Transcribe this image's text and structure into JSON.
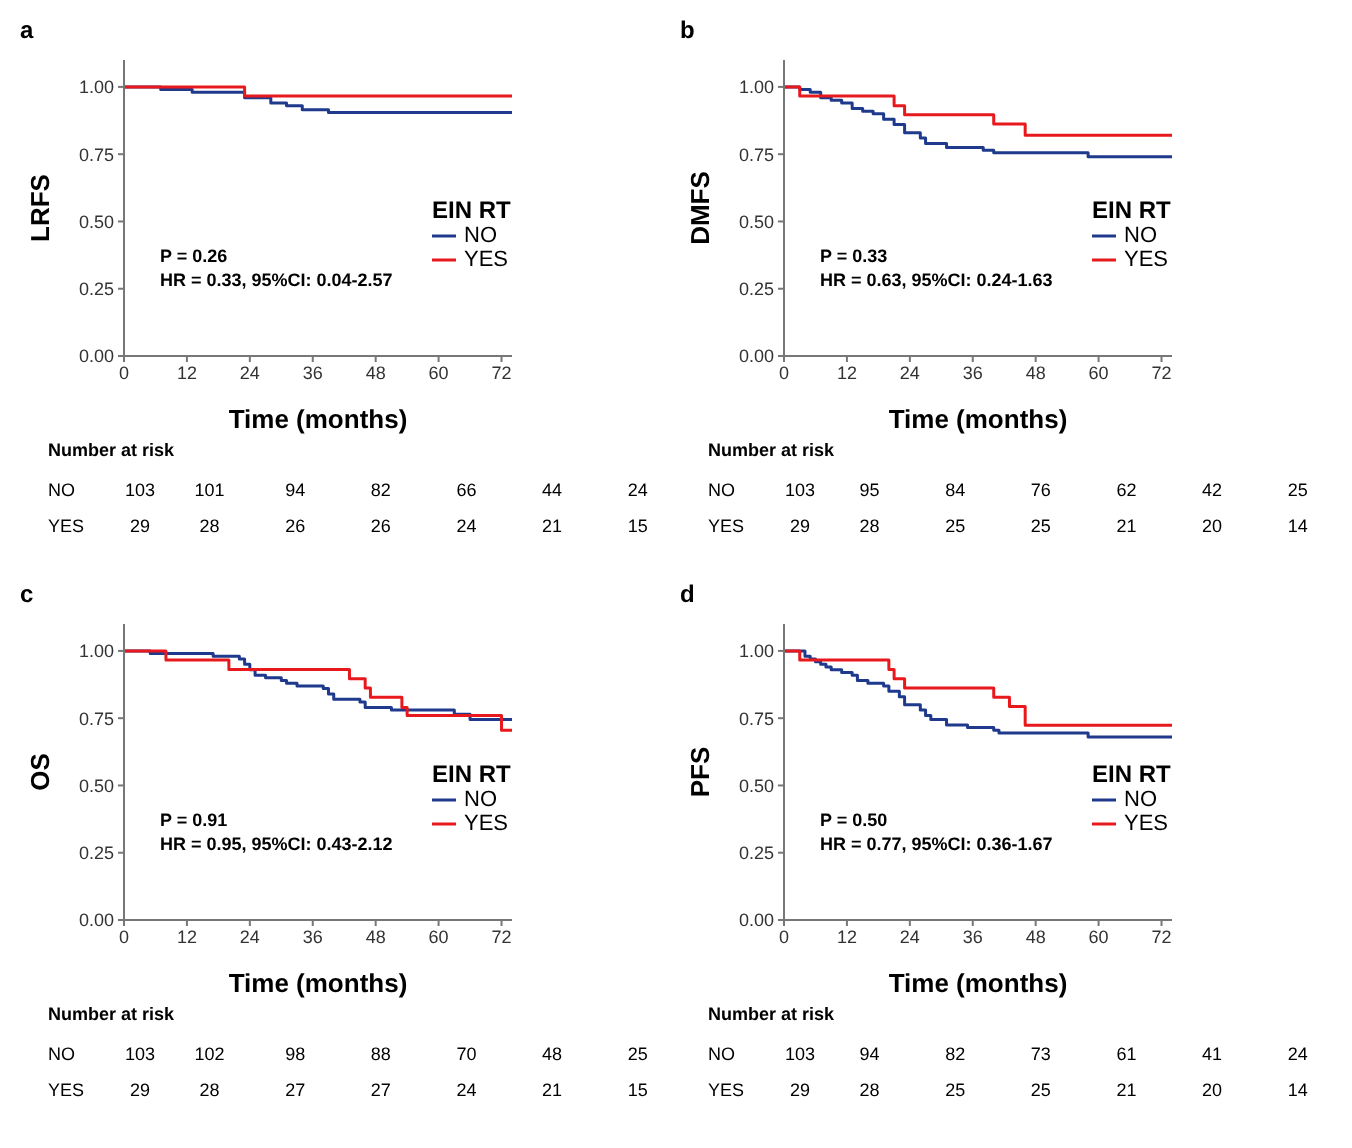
{
  "chart_data": [
    {
      "type": "step",
      "title": "a",
      "xlabel": "Time (months)",
      "ylabel": "LRFS",
      "legend_title": "EIN RT",
      "legend": "right",
      "xlim": [
        0,
        74
      ],
      "xticks": [
        0,
        12,
        24,
        36,
        48,
        60,
        72
      ],
      "ylim": [
        0,
        1.1
      ],
      "yticks": [
        {
          "value": 0,
          "label": "0.00"
        },
        {
          "value": 0.25,
          "label": "0.25"
        },
        {
          "value": 0.5,
          "label": "0.50"
        },
        {
          "value": 0.75,
          "label": "0.75"
        },
        {
          "value": 1,
          "label": "1.00"
        }
      ],
      "series": [
        {
          "name": "NO",
          "color": "#1f3a8c",
          "x": [
            0,
            7,
            13,
            23,
            28,
            31,
            34,
            39,
            74
          ],
          "values": [
            1,
            0.99,
            0.98,
            0.96,
            0.94,
            0.93,
            0.915,
            0.905,
            0.905
          ]
        },
        {
          "name": "YES",
          "color": "#e8191d",
          "x": [
            0,
            23,
            74
          ],
          "values": [
            1,
            0.966,
            0.966
          ]
        }
      ],
      "annotations": [
        "P = 0.26",
        "HR = 0.33, 95%CI: 0.04-2.57",
        "Number at risk",
        "NO",
        "103",
        "101",
        "94",
        "82",
        "66",
        "44",
        "24",
        "YES",
        "29",
        "28",
        "26",
        "26",
        "24",
        "21",
        "15"
      ]
    },
    {
      "type": "step",
      "title": "b",
      "xlabel": "Time (months)",
      "ylabel": "DMFS",
      "legend_title": "EIN RT",
      "legend": "right",
      "xlim": [
        0,
        74
      ],
      "xticks": [
        0,
        12,
        24,
        36,
        48,
        60,
        72
      ],
      "ylim": [
        0,
        1.1
      ],
      "yticks": [
        {
          "value": 0,
          "label": "0.00"
        },
        {
          "value": 0.25,
          "label": "0.25"
        },
        {
          "value": 0.5,
          "label": "0.50"
        },
        {
          "value": 0.75,
          "label": "0.75"
        },
        {
          "value": 1,
          "label": "1.00"
        }
      ],
      "series": [
        {
          "name": "NO",
          "color": "#1f3a8c",
          "x": [
            0,
            3,
            5,
            7,
            9,
            11,
            13,
            15,
            17,
            19,
            21,
            23,
            26,
            27,
            31,
            38,
            40,
            58,
            74
          ],
          "values": [
            1,
            0.99,
            0.98,
            0.96,
            0.95,
            0.94,
            0.92,
            0.91,
            0.9,
            0.88,
            0.86,
            0.83,
            0.81,
            0.79,
            0.775,
            0.765,
            0.755,
            0.74,
            0.74
          ]
        },
        {
          "name": "YES",
          "color": "#e8191d",
          "x": [
            0,
            3,
            21,
            23,
            40,
            46,
            74
          ],
          "values": [
            1,
            0.966,
            0.93,
            0.897,
            0.862,
            0.82,
            0.82
          ]
        }
      ],
      "annotations": [
        "P = 0.33",
        "HR = 0.63, 95%CI: 0.24-1.63",
        "Number at risk",
        "NO",
        "103",
        "95",
        "84",
        "76",
        "62",
        "42",
        "25",
        "YES",
        "29",
        "28",
        "25",
        "25",
        "21",
        "20",
        "14"
      ]
    },
    {
      "type": "step",
      "title": "c",
      "xlabel": "Time (months)",
      "ylabel": "OS",
      "legend_title": "EIN RT",
      "legend": "right",
      "xlim": [
        0,
        74
      ],
      "xticks": [
        0,
        12,
        24,
        36,
        48,
        60,
        72
      ],
      "ylim": [
        0,
        1.1
      ],
      "yticks": [
        {
          "value": 0,
          "label": "0.00"
        },
        {
          "value": 0.25,
          "label": "0.25"
        },
        {
          "value": 0.5,
          "label": "0.50"
        },
        {
          "value": 0.75,
          "label": "0.75"
        },
        {
          "value": 1,
          "label": "1.00"
        }
      ],
      "series": [
        {
          "name": "NO",
          "color": "#1f3a8c",
          "x": [
            0,
            5,
            17,
            22,
            23,
            24,
            25,
            27,
            30,
            31,
            33,
            38,
            39,
            40,
            45,
            46,
            51,
            63,
            66,
            74
          ],
          "values": [
            1,
            0.99,
            0.98,
            0.97,
            0.95,
            0.93,
            0.91,
            0.9,
            0.89,
            0.88,
            0.87,
            0.86,
            0.84,
            0.82,
            0.81,
            0.79,
            0.78,
            0.765,
            0.745,
            0.745
          ]
        },
        {
          "name": "YES",
          "color": "#e8191d",
          "x": [
            0,
            8,
            20,
            43,
            46,
            47,
            53,
            54,
            72,
            74
          ],
          "values": [
            1,
            0.966,
            0.931,
            0.897,
            0.862,
            0.828,
            0.79,
            0.76,
            0.705,
            0.705
          ]
        }
      ],
      "annotations": [
        "P = 0.91",
        "HR = 0.95, 95%CI: 0.43-2.12",
        "Number at risk",
        "NO",
        "103",
        "102",
        "98",
        "88",
        "70",
        "48",
        "25",
        "YES",
        "29",
        "28",
        "27",
        "27",
        "24",
        "21",
        "15"
      ]
    },
    {
      "type": "step",
      "title": "d",
      "xlabel": "Time (months)",
      "ylabel": "PFS",
      "legend_title": "EIN RT",
      "legend": "right",
      "xlim": [
        0,
        74
      ],
      "xticks": [
        0,
        12,
        24,
        36,
        48,
        60,
        72
      ],
      "ylim": [
        0,
        1.1
      ],
      "yticks": [
        {
          "value": 0,
          "label": "0.00"
        },
        {
          "value": 0.25,
          "label": "0.25"
        },
        {
          "value": 0.5,
          "label": "0.50"
        },
        {
          "value": 0.75,
          "label": "0.75"
        },
        {
          "value": 1,
          "label": "1.00"
        }
      ],
      "series": [
        {
          "name": "NO",
          "color": "#1f3a8c",
          "x": [
            0,
            4,
            5,
            6,
            7,
            8,
            9,
            11,
            13,
            14,
            16,
            19,
            20,
            22,
            23,
            26,
            27,
            28,
            31,
            35,
            40,
            41,
            58,
            74
          ],
          "values": [
            1,
            0.98,
            0.97,
            0.96,
            0.95,
            0.94,
            0.93,
            0.92,
            0.91,
            0.89,
            0.88,
            0.87,
            0.85,
            0.83,
            0.8,
            0.78,
            0.76,
            0.745,
            0.725,
            0.715,
            0.705,
            0.695,
            0.68,
            0.68
          ]
        },
        {
          "name": "YES",
          "color": "#e8191d",
          "x": [
            0,
            3,
            20,
            21,
            23,
            40,
            43,
            46,
            74
          ],
          "values": [
            1,
            0.966,
            0.931,
            0.897,
            0.862,
            0.828,
            0.793,
            0.724,
            0.724
          ]
        }
      ],
      "annotations": [
        "P = 0.50",
        "HR = 0.77, 95%CI: 0.36-1.67",
        "Number at risk",
        "NO",
        "103",
        "94",
        "82",
        "73",
        "61",
        "41",
        "24",
        "YES",
        "29",
        "28",
        "25",
        "25",
        "21",
        "20",
        "14"
      ]
    }
  ]
}
